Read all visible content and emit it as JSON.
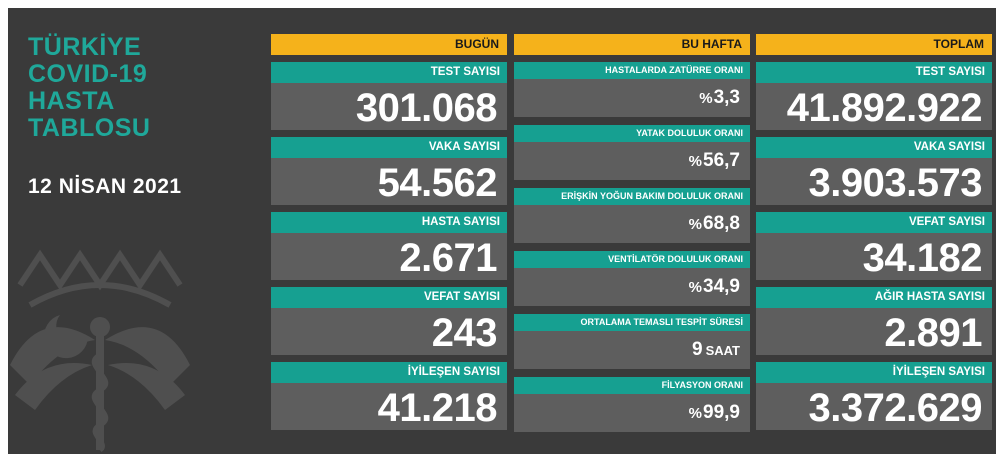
{
  "title_lines": [
    "TÜRKİYE",
    "COVID-19",
    "HASTA",
    "TABLOSU"
  ],
  "date": "12 NİSAN 2021",
  "today": {
    "header": "BUGÜN",
    "items": [
      {
        "label": "TEST SAYISI",
        "value": "301.068"
      },
      {
        "label": "VAKA SAYISI",
        "value": "54.562"
      },
      {
        "label": "HASTA SAYISI",
        "value": "2.671"
      },
      {
        "label": "VEFAT SAYISI",
        "value": "243"
      },
      {
        "label": "İYİLEŞEN SAYISI",
        "value": "41.218"
      }
    ]
  },
  "week": {
    "header": "BU HAFTA",
    "items": [
      {
        "label": "HASTALARDA ZATÜRRE ORANI",
        "prefix": "%",
        "value": "3,3",
        "unit": ""
      },
      {
        "label": "YATAK DOLULUK ORANI",
        "prefix": "%",
        "value": "56,7",
        "unit": ""
      },
      {
        "label": "ERİŞKİN YOĞUN BAKIM DOLULUK ORANI",
        "prefix": "%",
        "value": "68,8",
        "unit": ""
      },
      {
        "label": "VENTİLATÖR DOLULUK ORANI",
        "prefix": "%",
        "value": "34,9",
        "unit": ""
      },
      {
        "label": "ORTALAMA TEMASLI TESPİT SÜRESİ",
        "prefix": "",
        "value": "9",
        "unit": "SAAT"
      },
      {
        "label": "FİLYASYON ORANI",
        "prefix": "%",
        "value": "99,9",
        "unit": ""
      }
    ]
  },
  "total": {
    "header": "TOPLAM",
    "items": [
      {
        "label": "TEST SAYISI",
        "value": "41.892.922"
      },
      {
        "label": "VAKA SAYISI",
        "value": "3.903.573"
      },
      {
        "label": "VEFAT SAYISI",
        "value": "34.182"
      },
      {
        "label": "AĞIR HASTA SAYISI",
        "value": "2.891"
      },
      {
        "label": "İYİLEŞEN SAYISI",
        "value": "3.372.629"
      }
    ]
  },
  "colors": {
    "background": "#3a3a3a",
    "header": "#f5b21b",
    "label": "#16a091",
    "value": "#5e5e5e",
    "title": "#1fa89a"
  },
  "icons": [
    "ministry-emblem-icon"
  ]
}
